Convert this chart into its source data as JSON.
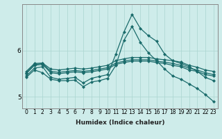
{
  "xlabel": "Humidex (Indice chaleur)",
  "bg_color": "#ceecea",
  "line_color": "#1a6b6b",
  "grid_color": "#aad4d0",
  "x_values": [
    0,
    1,
    2,
    3,
    4,
    5,
    6,
    7,
    8,
    9,
    10,
    11,
    12,
    13,
    14,
    15,
    16,
    17,
    18,
    19,
    20,
    21,
    22,
    23
  ],
  "series": [
    [
      5.55,
      5.72,
      5.73,
      5.6,
      5.58,
      5.6,
      5.62,
      5.6,
      5.62,
      5.65,
      5.68,
      5.78,
      5.82,
      5.85,
      5.85,
      5.85,
      5.82,
      5.8,
      5.78,
      5.75,
      5.68,
      5.64,
      5.58,
      5.55
    ],
    [
      5.52,
      5.7,
      5.72,
      5.55,
      5.53,
      5.55,
      5.57,
      5.55,
      5.57,
      5.6,
      5.63,
      5.73,
      5.77,
      5.8,
      5.8,
      5.8,
      5.77,
      5.75,
      5.72,
      5.68,
      5.62,
      5.58,
      5.52,
      5.48
    ],
    [
      5.5,
      5.68,
      5.7,
      5.52,
      5.5,
      5.52,
      5.54,
      5.52,
      5.54,
      5.57,
      5.6,
      5.7,
      5.74,
      5.77,
      5.77,
      5.77,
      5.74,
      5.72,
      5.68,
      5.65,
      5.58,
      5.55,
      5.48,
      5.45
    ],
    [
      5.45,
      5.62,
      5.65,
      5.42,
      5.38,
      5.4,
      5.42,
      5.3,
      5.4,
      5.44,
      5.48,
      5.92,
      6.4,
      6.78,
      6.48,
      6.32,
      6.2,
      5.92,
      5.78,
      5.72,
      5.65,
      5.55,
      5.42,
      5.35
    ],
    [
      5.42,
      5.58,
      5.52,
      5.38,
      5.35,
      5.35,
      5.36,
      5.22,
      5.32,
      5.35,
      5.4,
      5.68,
      6.22,
      6.52,
      6.18,
      5.95,
      5.78,
      5.6,
      5.45,
      5.38,
      5.28,
      5.18,
      5.05,
      4.9
    ]
  ],
  "ylim": [
    4.75,
    7.0
  ],
  "yticks": [
    5.0,
    6.0
  ],
  "xticks": [
    0,
    1,
    2,
    3,
    4,
    5,
    6,
    7,
    8,
    9,
    10,
    11,
    12,
    13,
    14,
    15,
    16,
    17,
    18,
    19,
    20,
    21,
    22,
    23
  ],
  "marker": "D",
  "marker_size": 2.0,
  "linewidth": 0.9,
  "tick_fontsize": 5.5,
  "xlabel_fontsize": 6.5
}
